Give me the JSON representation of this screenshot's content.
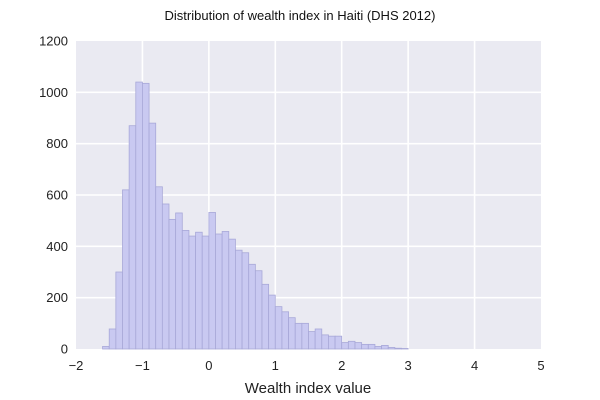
{
  "chart_data": {
    "type": "bar",
    "title": "Distribution of wealth index in Haiti (DHS 2012)",
    "xlabel": "Wealth index value",
    "ylabel": "",
    "xlim": [
      -2,
      5
    ],
    "ylim": [
      0,
      1200
    ],
    "x_ticks": [
      "−2",
      "−1",
      "0",
      "1",
      "2",
      "3",
      "4",
      "5"
    ],
    "y_ticks": [
      "0",
      "200",
      "400",
      "600",
      "800",
      "1000",
      "1200"
    ],
    "grid": true,
    "bin_width": 0.1,
    "bins": [
      {
        "x": -1.6,
        "y": 10
      },
      {
        "x": -1.5,
        "y": 78
      },
      {
        "x": -1.4,
        "y": 300
      },
      {
        "x": -1.3,
        "y": 620
      },
      {
        "x": -1.2,
        "y": 870
      },
      {
        "x": -1.1,
        "y": 1040
      },
      {
        "x": -1.0,
        "y": 1035
      },
      {
        "x": -0.9,
        "y": 880
      },
      {
        "x": -0.8,
        "y": 632
      },
      {
        "x": -0.7,
        "y": 565
      },
      {
        "x": -0.6,
        "y": 505
      },
      {
        "x": -0.5,
        "y": 530
      },
      {
        "x": -0.4,
        "y": 462
      },
      {
        "x": -0.3,
        "y": 440
      },
      {
        "x": -0.2,
        "y": 455
      },
      {
        "x": -0.1,
        "y": 440
      },
      {
        "x": 0.0,
        "y": 532
      },
      {
        "x": 0.1,
        "y": 448
      },
      {
        "x": 0.2,
        "y": 458
      },
      {
        "x": 0.3,
        "y": 428
      },
      {
        "x": 0.4,
        "y": 385
      },
      {
        "x": 0.5,
        "y": 375
      },
      {
        "x": 0.6,
        "y": 330
      },
      {
        "x": 0.7,
        "y": 305
      },
      {
        "x": 0.8,
        "y": 252
      },
      {
        "x": 0.9,
        "y": 210
      },
      {
        "x": 1.0,
        "y": 165
      },
      {
        "x": 1.1,
        "y": 145
      },
      {
        "x": 1.2,
        "y": 122
      },
      {
        "x": 1.3,
        "y": 100
      },
      {
        "x": 1.4,
        "y": 100
      },
      {
        "x": 1.5,
        "y": 68
      },
      {
        "x": 1.6,
        "y": 78
      },
      {
        "x": 1.7,
        "y": 55
      },
      {
        "x": 1.8,
        "y": 50
      },
      {
        "x": 1.9,
        "y": 50
      },
      {
        "x": 2.0,
        "y": 25
      },
      {
        "x": 2.1,
        "y": 30
      },
      {
        "x": 2.2,
        "y": 25
      },
      {
        "x": 2.3,
        "y": 18
      },
      {
        "x": 2.4,
        "y": 18
      },
      {
        "x": 2.5,
        "y": 10
      },
      {
        "x": 2.6,
        "y": 14
      },
      {
        "x": 2.7,
        "y": 6
      },
      {
        "x": 2.8,
        "y": 3
      },
      {
        "x": 2.9,
        "y": 2
      }
    ],
    "colors": {
      "bar_fill": "#c9c9f1",
      "bar_stroke": "#a8a8d8",
      "plot_background": "#eaeaf2",
      "grid": "#ffffff"
    }
  }
}
